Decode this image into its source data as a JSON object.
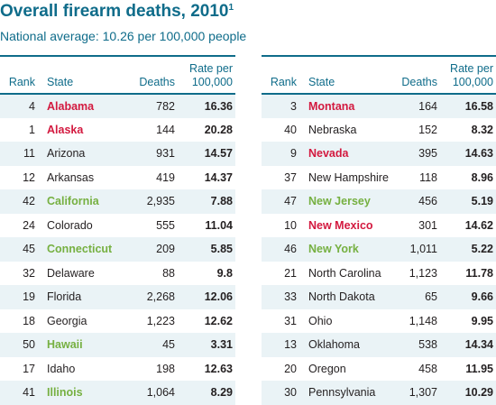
{
  "title": "Overall firearm deaths, 2010",
  "title_note": "1",
  "subtitle": "National average: 10.26 per 100,000 people",
  "colors": {
    "heading": "#0f6c8a",
    "red_highlight": "#d3193f",
    "green_highlight": "#76b041",
    "row_shade": "#eaf3f6"
  },
  "headers": {
    "rank": "Rank",
    "state": "State",
    "deaths": "Deaths",
    "rate_line1": "Rate per",
    "rate_line2": "100,000"
  },
  "left_rows": [
    {
      "rank": "4",
      "state": "Alabama",
      "deaths": "782",
      "rate": "16.36",
      "highlight": "red"
    },
    {
      "rank": "1",
      "state": "Alaska",
      "deaths": "144",
      "rate": "20.28",
      "highlight": "red"
    },
    {
      "rank": "11",
      "state": "Arizona",
      "deaths": "931",
      "rate": "14.57",
      "highlight": "none"
    },
    {
      "rank": "12",
      "state": "Arkansas",
      "deaths": "419",
      "rate": "14.37",
      "highlight": "none"
    },
    {
      "rank": "42",
      "state": "California",
      "deaths": "2,935",
      "rate": "7.88",
      "highlight": "green"
    },
    {
      "rank": "24",
      "state": "Colorado",
      "deaths": "555",
      "rate": "11.04",
      "highlight": "none"
    },
    {
      "rank": "45",
      "state": "Connecticut",
      "deaths": "209",
      "rate": "5.85",
      "highlight": "green"
    },
    {
      "rank": "32",
      "state": "Delaware",
      "deaths": "88",
      "rate": "9.8",
      "highlight": "none"
    },
    {
      "rank": "19",
      "state": "Florida",
      "deaths": "2,268",
      "rate": "12.06",
      "highlight": "none"
    },
    {
      "rank": "18",
      "state": "Georgia",
      "deaths": "1,223",
      "rate": "12.62",
      "highlight": "none"
    },
    {
      "rank": "50",
      "state": "Hawaii",
      "deaths": "45",
      "rate": "3.31",
      "highlight": "green"
    },
    {
      "rank": "17",
      "state": "Idaho",
      "deaths": "198",
      "rate": "12.63",
      "highlight": "none"
    },
    {
      "rank": "41",
      "state": "Illinois",
      "deaths": "1,064",
      "rate": "8.29",
      "highlight": "green"
    }
  ],
  "right_rows": [
    {
      "rank": "3",
      "state": "Montana",
      "deaths": "164",
      "rate": "16.58",
      "highlight": "red"
    },
    {
      "rank": "40",
      "state": "Nebraska",
      "deaths": "152",
      "rate": "8.32",
      "highlight": "none"
    },
    {
      "rank": "9",
      "state": "Nevada",
      "deaths": "395",
      "rate": "14.63",
      "highlight": "red"
    },
    {
      "rank": "37",
      "state": "New Hampshire",
      "deaths": "118",
      "rate": "8.96",
      "highlight": "none"
    },
    {
      "rank": "47",
      "state": "New Jersey",
      "deaths": "456",
      "rate": "5.19",
      "highlight": "green"
    },
    {
      "rank": "10",
      "state": "New Mexico",
      "deaths": "301",
      "rate": "14.62",
      "highlight": "red"
    },
    {
      "rank": "46",
      "state": "New York",
      "deaths": "1,011",
      "rate": "5.22",
      "highlight": "green"
    },
    {
      "rank": "21",
      "state": "North Carolina",
      "deaths": "1,123",
      "rate": "11.78",
      "highlight": "none"
    },
    {
      "rank": "33",
      "state": "North Dakota",
      "deaths": "65",
      "rate": "9.66",
      "highlight": "none"
    },
    {
      "rank": "31",
      "state": "Ohio",
      "deaths": "1,148",
      "rate": "9.95",
      "highlight": "none"
    },
    {
      "rank": "13",
      "state": "Oklahoma",
      "deaths": "538",
      "rate": "14.34",
      "highlight": "none"
    },
    {
      "rank": "20",
      "state": "Oregon",
      "deaths": "458",
      "rate": "11.95",
      "highlight": "none"
    },
    {
      "rank": "30",
      "state": "Pennsylvania",
      "deaths": "1,307",
      "rate": "10.29",
      "highlight": "none"
    }
  ]
}
